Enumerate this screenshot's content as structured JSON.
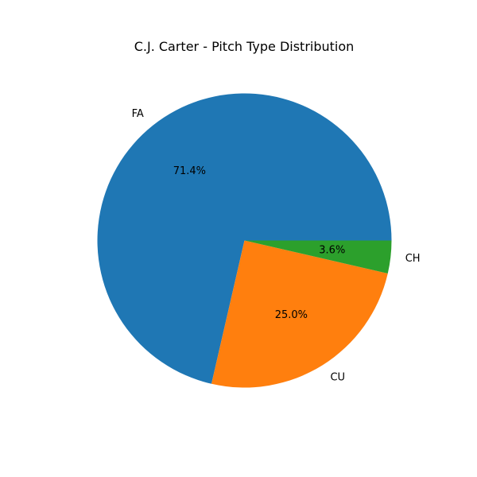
{
  "chart_data": {
    "type": "pie",
    "title": "C.J. Carter - Pitch Type Distribution",
    "categories": [
      "FA",
      "CU",
      "CH"
    ],
    "values": [
      71.4,
      25.0,
      3.6
    ],
    "percent_labels": [
      "71.4%",
      "25.0%",
      "3.6%"
    ],
    "colors": [
      "#1f77b4",
      "#ff7f0e",
      "#2ca02c"
    ],
    "start_angle_deg": 0,
    "direction": "counterclockwise"
  }
}
